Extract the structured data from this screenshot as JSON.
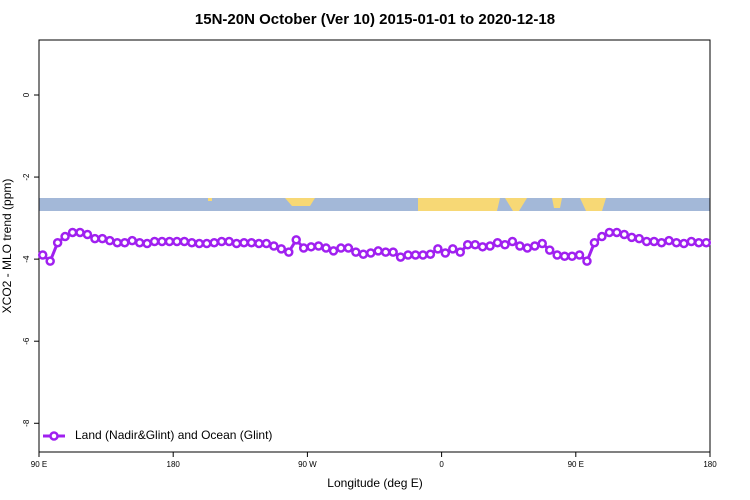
{
  "chart_data": {
    "type": "line",
    "title": "15N-20N October (Ver 10)   2015-01-01 to 2020-12-18",
    "x_label": "Longitude (deg E)",
    "y_label": "XCO2 - MLO trend (ppm)",
    "xlim": [
      90,
      540
    ],
    "xticks": [
      {
        "value": 90,
        "label": "90 E"
      },
      180,
      {
        "value": 270,
        "label": "90 W"
      },
      {
        "value": 360,
        "label": "0"
      },
      {
        "value": 450,
        "label": "90 E"
      },
      {
        "value": 540,
        "label": "180"
      }
    ],
    "ylim": [
      -8.7,
      1.34
    ],
    "yticks": [
      0,
      -2,
      -4,
      -6,
      -8
    ],
    "legend": "bottom-left",
    "x": [
      92.5,
      97.5,
      102.5,
      107.5,
      112.5,
      117.5,
      122.5,
      127.5,
      132.5,
      137.5,
      142.5,
      147.5,
      152.5,
      157.5,
      162.5,
      167.5,
      172.5,
      177.5,
      182.5,
      187.5,
      192.5,
      197.5,
      202.5,
      207.5,
      212.5,
      217.5,
      222.5,
      227.5,
      232.5,
      237.5,
      242.5,
      247.5,
      252.5,
      257.5,
      262.5,
      267.5,
      272.5,
      277.5,
      282.5,
      287.5,
      292.5,
      297.5,
      302.5,
      307.5,
      312.5,
      317.5,
      322.5,
      327.5,
      332.5,
      337.5,
      342.5,
      347.5,
      352.5,
      357.5,
      362.5,
      367.5,
      372.5,
      377.5,
      382.5,
      387.5,
      392.5,
      397.5,
      402.5,
      407.5,
      412.5,
      417.5,
      422.5,
      427.5,
      432.5,
      437.5,
      442.5,
      447.5,
      452.5,
      457.5,
      462.5,
      467.5,
      472.5,
      477.5,
      482.5,
      487.5,
      492.5,
      497.5,
      502.5,
      507.5,
      512.5,
      517.5,
      522.5,
      527.5,
      532.5,
      537.5
    ],
    "series": [
      {
        "name": "Land (Nadir&Glint) and Ocean (Glint)",
        "color": "#a020f0",
        "values": [
          -3.9,
          -4.05,
          -3.6,
          -3.45,
          -3.35,
          -3.35,
          -3.4,
          -3.5,
          -3.5,
          -3.55,
          -3.6,
          -3.6,
          -3.55,
          -3.6,
          -3.62,
          -3.57,
          -3.57,
          -3.57,
          -3.57,
          -3.57,
          -3.6,
          -3.62,
          -3.62,
          -3.6,
          -3.57,
          -3.57,
          -3.62,
          -3.6,
          -3.6,
          -3.62,
          -3.62,
          -3.68,
          -3.75,
          -3.83,
          -3.53,
          -3.73,
          -3.7,
          -3.68,
          -3.73,
          -3.8,
          -3.73,
          -3.73,
          -3.83,
          -3.88,
          -3.85,
          -3.8,
          -3.83,
          -3.83,
          -3.95,
          -3.9,
          -3.9,
          -3.9,
          -3.88,
          -3.75,
          -3.85,
          -3.75,
          -3.83,
          -3.65,
          -3.65,
          -3.7,
          -3.68,
          -3.6,
          -3.65,
          -3.57,
          -3.68,
          -3.73,
          -3.68,
          -3.62,
          -3.78,
          -3.9,
          -3.93,
          -3.93,
          -3.9,
          -4.05,
          -3.6,
          -3.45,
          -3.35,
          -3.35,
          -3.4,
          -3.47,
          -3.5,
          -3.57,
          -3.57,
          -3.6,
          -3.55,
          -3.6,
          -3.62,
          -3.57,
          -3.6,
          -3.6
        ]
      }
    ]
  }
}
